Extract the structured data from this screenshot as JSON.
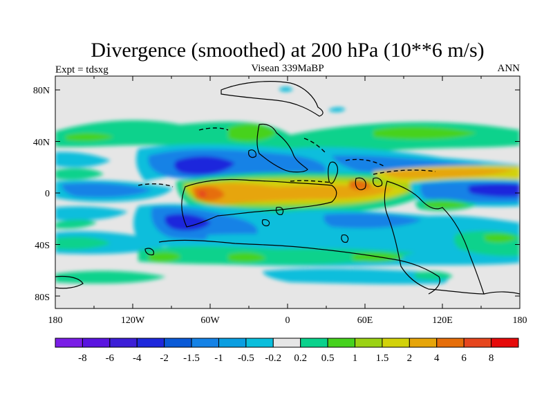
{
  "title": "Divergence (smoothed) at 200 hPa (10**6 m/s)",
  "left_label": "Expt = tdsxg",
  "center_label": "Visean 339MaBP",
  "right_label": "ANN",
  "lon_ticks": [
    "180",
    "120W",
    "60W",
    "0",
    "60E",
    "120E",
    "180"
  ],
  "lat_ticks": [
    "80N",
    "40N",
    "0",
    "40S",
    "80S"
  ],
  "colorbar": {
    "colors": [
      "#7a1ee6",
      "#5a14e0",
      "#3c1ed7",
      "#1e28dc",
      "#0a5ad7",
      "#1482e6",
      "#0a9ee1",
      "#0abedc",
      "#e6e6e6",
      "#0ad28c",
      "#46d21e",
      "#9bd214",
      "#d2d20a",
      "#e6a50a",
      "#e66e0a",
      "#e6461e",
      "#e60a0a"
    ],
    "labels": [
      "-8",
      "-6",
      "-4",
      "-2",
      "-1.5",
      "-1",
      "-0.5",
      "-0.2",
      "0.2",
      "0.5",
      "1",
      "1.5",
      "2",
      "4",
      "6",
      "8"
    ]
  },
  "colors": {
    "neutral": "#e6e6e6",
    "weak_neg": "#0abedc",
    "neg": "#1482e6",
    "strong_neg": "#0a5ad7",
    "very_neg": "#1e28dc",
    "weak_pos": "#0ad28c",
    "pos": "#46d21e",
    "med_pos": "#9bd214",
    "yellow": "#d2d20a",
    "orange": "#e6a50a",
    "strong_pos": "#e66e0a",
    "red": "#e6461e"
  }
}
